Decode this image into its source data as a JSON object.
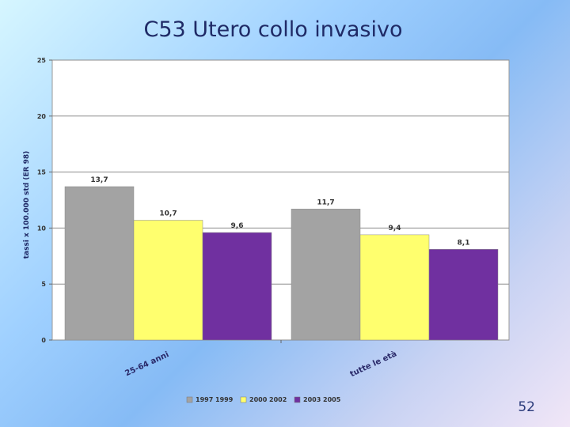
{
  "slide": {
    "title": "C53 Utero collo invasivo",
    "number": "52"
  },
  "colors": {
    "series_1": "#a3a3a3",
    "series_2": "#ffff6e",
    "series_3": "#7030a0"
  },
  "chart_data": {
    "type": "bar",
    "title": "C53 Utero collo invasivo",
    "xlabel": "",
    "ylabel": "tassi x 100.000 std (ER 98)",
    "ylim": [
      0,
      25
    ],
    "yticks": [
      0,
      5,
      10,
      15,
      20,
      25
    ],
    "grid": true,
    "legend": "bottom",
    "categories": [
      "25-64 anni",
      "tutte le età"
    ],
    "series": [
      {
        "name": "1997 1999",
        "values": [
          13.7,
          11.7
        ],
        "labels": [
          "13,7",
          "11,7"
        ]
      },
      {
        "name": "2000 2002",
        "values": [
          10.7,
          9.4
        ],
        "labels": [
          "10,7",
          "9,4"
        ]
      },
      {
        "name": "2003 2005",
        "values": [
          9.6,
          8.1
        ],
        "labels": [
          "9,6",
          "8,1"
        ]
      }
    ]
  }
}
